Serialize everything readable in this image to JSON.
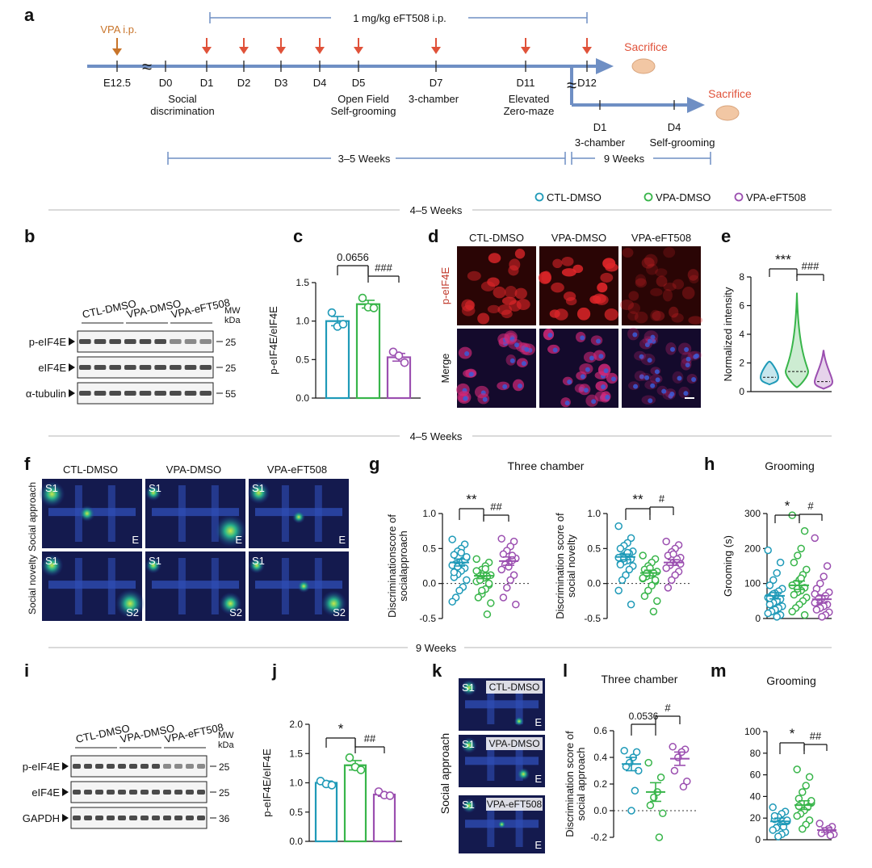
{
  "colors": {
    "ctl": "#1f9ab8",
    "vpa": "#38b54a",
    "eft": "#9b4fb0",
    "timeline": "#6f8fc4",
    "arrow_red": "#e0523a",
    "arrow_orange": "#c8742a",
    "sacrifice": "#e0523a",
    "vpa_label": "#c8742a",
    "peif4e_label": "#c0392b",
    "section_line": "#b5b5b5"
  },
  "legend": {
    "items": [
      {
        "label": "CTL-DMSO",
        "color": "#1f9ab8"
      },
      {
        "label": "VPA-DMSO",
        "color": "#38b54a"
      },
      {
        "label": "VPA-eFT508",
        "color": "#9b4fb0"
      }
    ]
  },
  "sections": {
    "week1": "4–5 Weeks",
    "week2": "4–5 Weeks",
    "week3": "9 Weeks"
  },
  "panel_letters": {
    "a": "a",
    "b": "b",
    "c": "c",
    "d": "d",
    "e": "e",
    "f": "f",
    "g": "g",
    "h": "h",
    "i": "i",
    "j": "j",
    "k": "k",
    "l": "l",
    "m": "m"
  },
  "timeline": {
    "vpa_label": "VPA i.p.",
    "treatment_label": "1 mg/kg eFT508 i.p.",
    "days": [
      "E12.5",
      "D0",
      "D1",
      "D2",
      "D3",
      "D4",
      "D5",
      "D7",
      "D11",
      "D12"
    ],
    "tests": {
      "d0": "Social\ndiscrimination",
      "d5": "Open Field\nSelf-grooming",
      "d7": "3-chamber",
      "d11": "Elevated\nZero-maze"
    },
    "sacrifice1": "Sacrifice",
    "sacrifice2": "Sacrifice",
    "branch_days": [
      "D1",
      "D4"
    ],
    "branch_tests": {
      "d1": "3-chamber",
      "d4": "Self-grooming"
    },
    "span1": "3–5 Weeks",
    "span2": "9 Weeks"
  },
  "panel_b": {
    "groups": [
      "CTL-DMSO",
      "VPA-DMSO",
      "VPA-eFT508"
    ],
    "mw_label": "MW\nkDa",
    "rows": [
      {
        "label": "p-eIF4E",
        "mw": "25"
      },
      {
        "label": "eIF4E",
        "mw": "25"
      },
      {
        "label": "α-tubulin",
        "mw": "55"
      }
    ]
  },
  "panel_i": {
    "groups": [
      "CTL-DMSO",
      "VPA-DMSO",
      "VPA-eFT508"
    ],
    "mw_label": "MW\nkDa",
    "rows": [
      {
        "label": "p-eIF4E",
        "mw": "25"
      },
      {
        "label": "eIF4E",
        "mw": "25"
      },
      {
        "label": "GAPDH",
        "mw": "36"
      }
    ]
  },
  "panel_d": {
    "columns": [
      "CTL-DMSO",
      "VPA-DMSO",
      "VPA-eFT508"
    ],
    "rows": [
      "p-eIF4E",
      "Merge"
    ]
  },
  "panel_f": {
    "columns": [
      "CTL-DMSO",
      "VPA-DMSO",
      "VPA-eFT508"
    ],
    "rows": [
      "Social approach",
      "Social novelty"
    ],
    "tags_row1": [
      "S1",
      "E"
    ],
    "tags_row2": [
      "S1",
      "S2"
    ]
  },
  "panel_k": {
    "row_label": "Social approach",
    "panels": [
      "CTL-DMSO",
      "VPA-DMSO",
      "VPA-eFT508"
    ],
    "tags": [
      "S1",
      "E"
    ]
  },
  "chart_data": [
    {
      "id": "c",
      "type": "bar",
      "title": "",
      "ylabel": "p-eIF4E/eIF4E",
      "ylim": [
        0,
        1.5
      ],
      "yticks": [
        "0.0",
        "0.5",
        "1.0",
        "1.5"
      ],
      "categories": [
        "CTL-DMSO",
        "VPA-DMSO",
        "VPA-eFT508"
      ],
      "values": [
        1.0,
        1.22,
        0.53
      ],
      "sem": [
        0.06,
        0.05,
        0.05
      ],
      "points": [
        [
          1.11,
          0.93,
          0.96
        ],
        [
          1.3,
          1.18,
          1.17
        ],
        [
          0.6,
          0.55,
          0.46
        ]
      ],
      "annotations": [
        "0.0656",
        "###"
      ]
    },
    {
      "id": "e",
      "type": "violin",
      "title": "",
      "ylabel": "Normalized intensity",
      "ylim": [
        0,
        8
      ],
      "yticks": [
        "0",
        "2",
        "4",
        "6",
        "8"
      ],
      "categories": [
        "CTL-DMSO",
        "VPA-DMSO",
        "VPA-eFT508"
      ],
      "medians": [
        1.0,
        1.4,
        0.7
      ],
      "ranges": [
        [
          0.5,
          2.1
        ],
        [
          0.3,
          6.9
        ],
        [
          0.2,
          2.9
        ]
      ],
      "annotations": [
        "***",
        "###"
      ]
    },
    {
      "id": "g1",
      "type": "scatter",
      "title": "Three chamber",
      "ylabel": "Discriminationscore of socialapproach",
      "ylim": [
        -0.5,
        1.0
      ],
      "yticks": [
        "-0.5",
        "0.0",
        "0.5",
        "1.0"
      ],
      "categories": [
        "CTL-DMSO",
        "VPA-DMSO",
        "VPA-eFT508"
      ],
      "means": [
        0.3,
        0.11,
        0.32
      ],
      "sem": [
        0.05,
        0.04,
        0.06
      ],
      "points": [
        [
          0.63,
          0.56,
          0.5,
          0.46,
          0.41,
          0.37,
          0.33,
          0.3,
          0.28,
          0.26,
          0.22,
          0.18,
          0.13,
          0.09,
          0.05,
          -0.05,
          -0.1,
          -0.2,
          -0.26,
          0.34,
          0.44,
          0.24,
          0.16,
          0.38
        ],
        [
          0.35,
          0.3,
          0.25,
          0.2,
          0.16,
          0.12,
          0.1,
          0.08,
          0.06,
          0.03,
          -0.02,
          -0.08,
          -0.15,
          -0.2,
          -0.28,
          -0.44,
          0.14,
          0.05,
          0.18,
          0.0,
          0.21,
          -0.1
        ],
        [
          0.64,
          0.6,
          0.53,
          0.47,
          0.42,
          0.36,
          0.33,
          0.3,
          0.27,
          0.2,
          0.12,
          0.05,
          -0.06,
          -0.2,
          -0.3,
          0.4,
          0.24
        ]
      ],
      "annotations": [
        "**",
        "##"
      ]
    },
    {
      "id": "g2",
      "type": "scatter",
      "title": "",
      "ylabel": "Discrimination score of social novelty",
      "ylim": [
        -0.5,
        1.0
      ],
      "yticks": [
        "-0.5",
        "0.0",
        "0.5",
        "1.0"
      ],
      "categories": [
        "CTL-DMSO",
        "VPA-DMSO",
        "VPA-eFT508"
      ],
      "means": [
        0.38,
        0.15,
        0.3
      ],
      "sem": [
        0.04,
        0.04,
        0.04
      ],
      "points": [
        [
          0.82,
          0.65,
          0.58,
          0.54,
          0.5,
          0.46,
          0.43,
          0.41,
          0.39,
          0.37,
          0.35,
          0.33,
          0.31,
          0.28,
          0.25,
          0.2,
          0.12,
          0.05,
          -0.1,
          -0.3,
          0.44,
          0.36,
          0.27
        ],
        [
          0.4,
          0.35,
          0.3,
          0.25,
          0.2,
          0.17,
          0.15,
          0.12,
          0.1,
          0.07,
          0.03,
          -0.03,
          -0.1,
          -0.18,
          -0.25,
          -0.4,
          0.22,
          0.14,
          0.08,
          0.05
        ],
        [
          0.6,
          0.55,
          0.5,
          0.45,
          0.4,
          0.37,
          0.33,
          0.3,
          0.26,
          0.22,
          0.17,
          0.12,
          0.05,
          -0.06,
          0.28,
          0.35,
          0.42
        ]
      ],
      "annotations": [
        "**",
        "#"
      ]
    },
    {
      "id": "h",
      "type": "scatter",
      "title": "Grooming",
      "ylabel": "Grooming (s)",
      "ylim": [
        0,
        300
      ],
      "yticks": [
        "0",
        "100",
        "200",
        "300"
      ],
      "categories": [
        "CTL-DMSO",
        "VPA-DMSO",
        "VPA-eFT508"
      ],
      "means": [
        65,
        95,
        55
      ],
      "sem": [
        9,
        12,
        10
      ],
      "points": [
        [
          195,
          160,
          130,
          110,
          95,
          85,
          78,
          72,
          65,
          60,
          55,
          50,
          45,
          40,
          35,
          30,
          25,
          20,
          15,
          10,
          5,
          70,
          58
        ],
        [
          295,
          250,
          200,
          180,
          160,
          140,
          125,
          110,
          100,
          95,
          88,
          80,
          75,
          68,
          60,
          50,
          40,
          30,
          20,
          10,
          115,
          85
        ],
        [
          230,
          150,
          120,
          100,
          85,
          75,
          65,
          58,
          50,
          45,
          40,
          35,
          30,
          25,
          18,
          10,
          5,
          60,
          70
        ]
      ],
      "annotations": [
        "*",
        "#"
      ]
    },
    {
      "id": "j",
      "type": "bar",
      "title": "",
      "ylabel": "p-eIF4E/eIF4E",
      "ylim": [
        0,
        2.0
      ],
      "yticks": [
        "0.0",
        "0.5",
        "1.0",
        "1.5",
        "2.0"
      ],
      "categories": [
        "CTL-DMSO",
        "VPA-DMSO",
        "VPA-eFT508"
      ],
      "values": [
        1.0,
        1.3,
        0.8
      ],
      "sem": [
        0.03,
        0.08,
        0.03
      ],
      "points": [
        [
          1.03,
          0.98,
          0.96
        ],
        [
          1.43,
          1.27,
          1.22
        ],
        [
          0.85,
          0.79,
          0.78
        ]
      ],
      "annotations": [
        "*",
        "##"
      ]
    },
    {
      "id": "l",
      "type": "scatter",
      "title": "Three chamber",
      "ylabel": "Discrimination score of social approach",
      "ylim": [
        -0.2,
        0.6
      ],
      "yticks": [
        "-0.2",
        "0.0",
        "0.2",
        "0.4",
        "0.6"
      ],
      "categories": [
        "CTL-DMSO",
        "VPA-DMSO",
        "VPA-eFT508"
      ],
      "means": [
        0.35,
        0.14,
        0.39
      ],
      "sem": [
        0.05,
        0.07,
        0.05
      ],
      "points": [
        [
          0.45,
          0.44,
          0.4,
          0.36,
          0.33,
          0.3,
          0.15,
          0.0
        ],
        [
          0.36,
          0.25,
          0.14,
          0.1,
          0.04,
          -0.02,
          -0.2
        ],
        [
          0.48,
          0.46,
          0.44,
          0.4,
          0.3,
          0.22,
          0.18
        ]
      ],
      "annotations": [
        "0.0536",
        "#"
      ]
    },
    {
      "id": "m",
      "type": "scatter",
      "title": "Grooming",
      "ylabel": "",
      "ylim": [
        0,
        100
      ],
      "yticks": [
        "0",
        "20",
        "40",
        "60",
        "80",
        "100"
      ],
      "categories": [
        "CTL-DMSO",
        "VPA-DMSO",
        "VPA-eFT508"
      ],
      "means": [
        17,
        32,
        9
      ],
      "sem": [
        3,
        4,
        2
      ],
      "points": [
        [
          30,
          26,
          24,
          21,
          19,
          17,
          15,
          13,
          11,
          9,
          7,
          5,
          3,
          22,
          18,
          12
        ],
        [
          65,
          58,
          50,
          44,
          38,
          34,
          30,
          27,
          24,
          22,
          18,
          14,
          10,
          31,
          36
        ],
        [
          15,
          12,
          10,
          8,
          6,
          5,
          4
        ]
      ],
      "annotations": [
        "*",
        "##"
      ]
    }
  ]
}
